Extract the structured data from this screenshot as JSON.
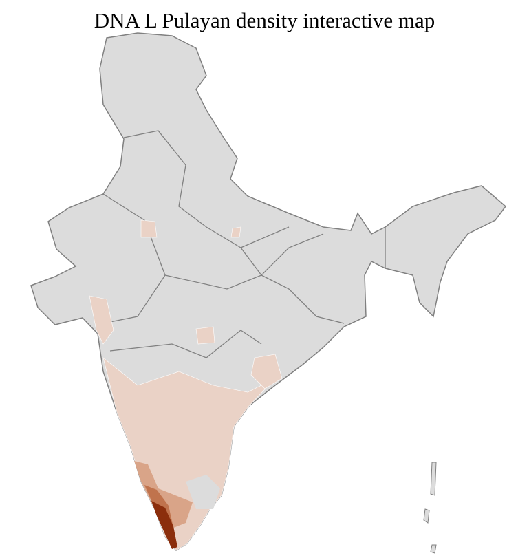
{
  "title": "DNA L Pulayan density interactive map",
  "colors": {
    "no_data": "#dcdcdc",
    "low": "#ead2c6",
    "medium": "#d9a488",
    "high": "#c0734d",
    "very_high": "#8b2e0c",
    "state_border": "#808080",
    "district_border": "#ffffff"
  }
}
